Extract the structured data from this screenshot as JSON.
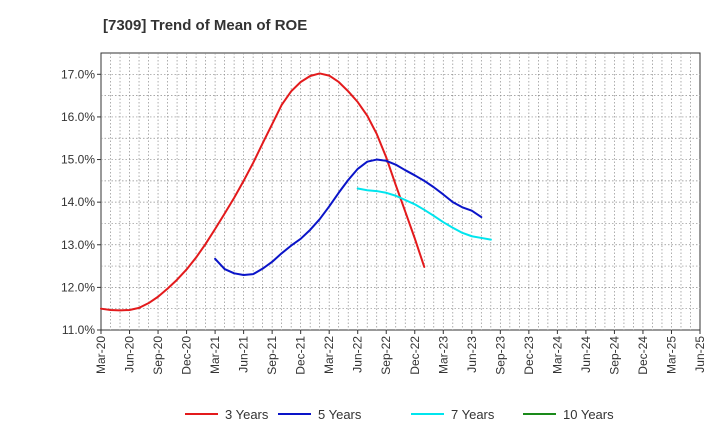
{
  "chart_data": {
    "type": "line",
    "title": "[7309]  Trend of Mean of ROE",
    "xlabel": "",
    "ylabel": "",
    "x_tick_labels": [
      "Mar-20",
      "Jun-20",
      "Sep-20",
      "Dec-20",
      "Mar-21",
      "Jun-21",
      "Sep-21",
      "Dec-21",
      "Mar-22",
      "Jun-22",
      "Sep-22",
      "Dec-22",
      "Mar-23",
      "Jun-23",
      "Sep-23",
      "Dec-23",
      "Mar-24",
      "Jun-24",
      "Sep-24",
      "Dec-24",
      "Mar-25",
      "Jun-25"
    ],
    "y_tick_labels": [
      "11.0%",
      "12.0%",
      "13.0%",
      "14.0%",
      "15.0%",
      "16.0%",
      "17.0%"
    ],
    "ylim": [
      11.0,
      17.5
    ],
    "grid": true,
    "legend_position": "bottom",
    "series": [
      {
        "name": "3 Years",
        "color": "#e31a1c",
        "start_index": 0,
        "values": [
          11.5,
          11.47,
          11.46,
          11.47,
          11.52,
          11.63,
          11.78,
          11.97,
          12.18,
          12.42,
          12.7,
          13.02,
          13.37,
          13.73,
          14.1,
          14.5,
          14.92,
          15.38,
          15.83,
          16.28,
          16.6,
          16.82,
          16.96,
          17.02,
          16.97,
          16.82,
          16.6,
          16.35,
          16.03,
          15.6,
          15.05,
          14.4,
          13.78,
          13.15,
          12.48
        ]
      },
      {
        "name": "5 Years",
        "color": "#0a14c8",
        "start_index": 12,
        "values": [
          12.67,
          12.43,
          12.33,
          12.29,
          12.31,
          12.44,
          12.6,
          12.8,
          12.98,
          13.14,
          13.35,
          13.6,
          13.9,
          14.22,
          14.52,
          14.78,
          14.95,
          15.0,
          14.97,
          14.88,
          14.75,
          14.63,
          14.5,
          14.35,
          14.18,
          14.0,
          13.88,
          13.8,
          13.65
        ]
      },
      {
        "name": "7 Years",
        "color": "#00e5ee",
        "start_index": 27,
        "values": [
          14.32,
          14.28,
          14.26,
          14.22,
          14.15,
          14.05,
          13.95,
          13.82,
          13.68,
          13.53,
          13.4,
          13.28,
          13.2,
          13.16,
          13.12
        ]
      },
      {
        "name": "10 Years",
        "color": "#1a8a1a",
        "start_index": 0,
        "values": []
      }
    ]
  }
}
